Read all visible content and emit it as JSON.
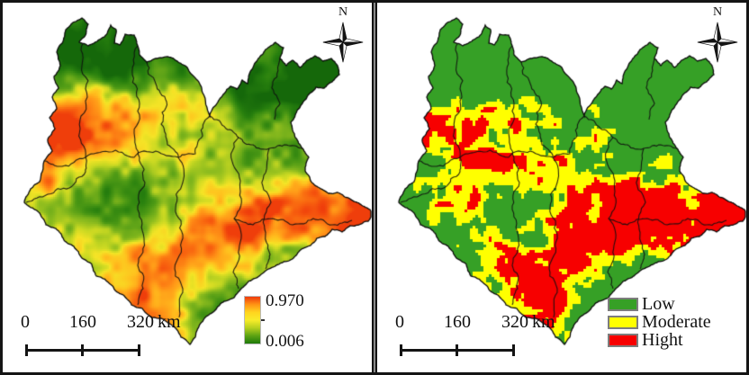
{
  "figure": {
    "background": "#ffffff",
    "border_color": "#141414",
    "boundary_line_color": "#141414"
  },
  "left_panel": {
    "name": "continuous-probability-map",
    "north_label": "N",
    "colorbar": {
      "max_label": "0.970",
      "min_label": "0.006",
      "gradient_top_to_bottom": [
        "#ee3a0b",
        "#ff9414",
        "#ffd51f",
        "#f8ec2a",
        "#b5cf1e",
        "#5ca313",
        "#1e7a0b"
      ]
    },
    "scalebar": {
      "tick0": "0",
      "tick1": "160",
      "tick2": "320",
      "unit": "km"
    },
    "palette": [
      [
        0,
        "#14660a"
      ],
      [
        0.15,
        "#277f0e"
      ],
      [
        0.3,
        "#4e9a15"
      ],
      [
        0.42,
        "#85b81d"
      ],
      [
        0.52,
        "#c8d822"
      ],
      [
        0.6,
        "#f5e426"
      ],
      [
        0.7,
        "#ffc21e"
      ],
      [
        0.8,
        "#ff9417"
      ],
      [
        0.9,
        "#f8610f"
      ],
      [
        1,
        "#ee3a0b"
      ]
    ]
  },
  "right_panel": {
    "name": "classified-risk-map",
    "north_label": "N",
    "legend": {
      "items": [
        {
          "label": "Low",
          "color": "#36a026"
        },
        {
          "label": "Moderate",
          "color": "#ffff00"
        },
        {
          "label": "Hight",
          "color": "#f70000"
        }
      ]
    },
    "scalebar": {
      "tick0": "0",
      "tick1": "160",
      "tick2": "320",
      "unit": "km"
    }
  }
}
